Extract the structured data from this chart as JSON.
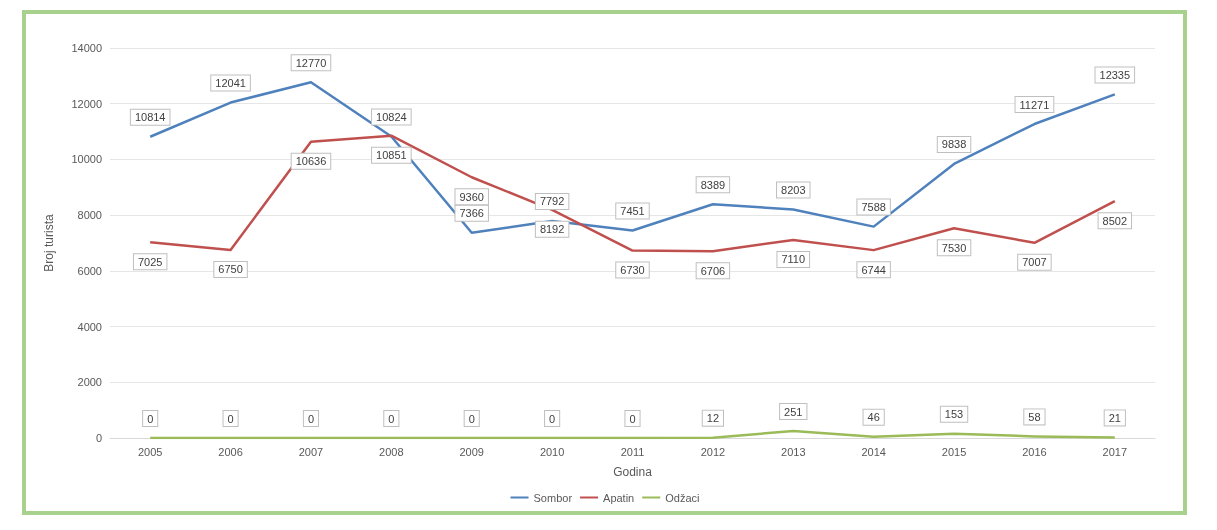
{
  "chart_data": {
    "type": "line",
    "xlabel": "Godina",
    "ylabel": "Broj turista",
    "categories": [
      "2005",
      "2006",
      "2007",
      "2008",
      "2009",
      "2010",
      "2011",
      "2012",
      "2013",
      "2014",
      "2015",
      "2016",
      "2017"
    ],
    "series": [
      {
        "name": "Sombor",
        "color": "#4f81bd",
        "values": [
          10814,
          12041,
          12770,
          10824,
          7366,
          7792,
          7451,
          8389,
          8203,
          7588,
          9838,
          11271,
          12335
        ]
      },
      {
        "name": "Apatin",
        "color": "#c0504d",
        "values": [
          7025,
          6750,
          10636,
          10851,
          9360,
          8192,
          6730,
          6706,
          7110,
          6744,
          7530,
          7007,
          8502
        ]
      },
      {
        "name": "Odžaci",
        "color": "#9bbb59",
        "values": [
          0,
          0,
          0,
          0,
          0,
          0,
          0,
          12,
          251,
          46,
          153,
          58,
          21
        ]
      }
    ],
    "ylim": [
      0,
      14000
    ],
    "yticks": [
      0,
      2000,
      4000,
      6000,
      8000,
      10000,
      12000,
      14000
    ],
    "grid": "y",
    "legend": "bottom",
    "marker": "none",
    "line_style": "solid",
    "data_labels": true
  }
}
